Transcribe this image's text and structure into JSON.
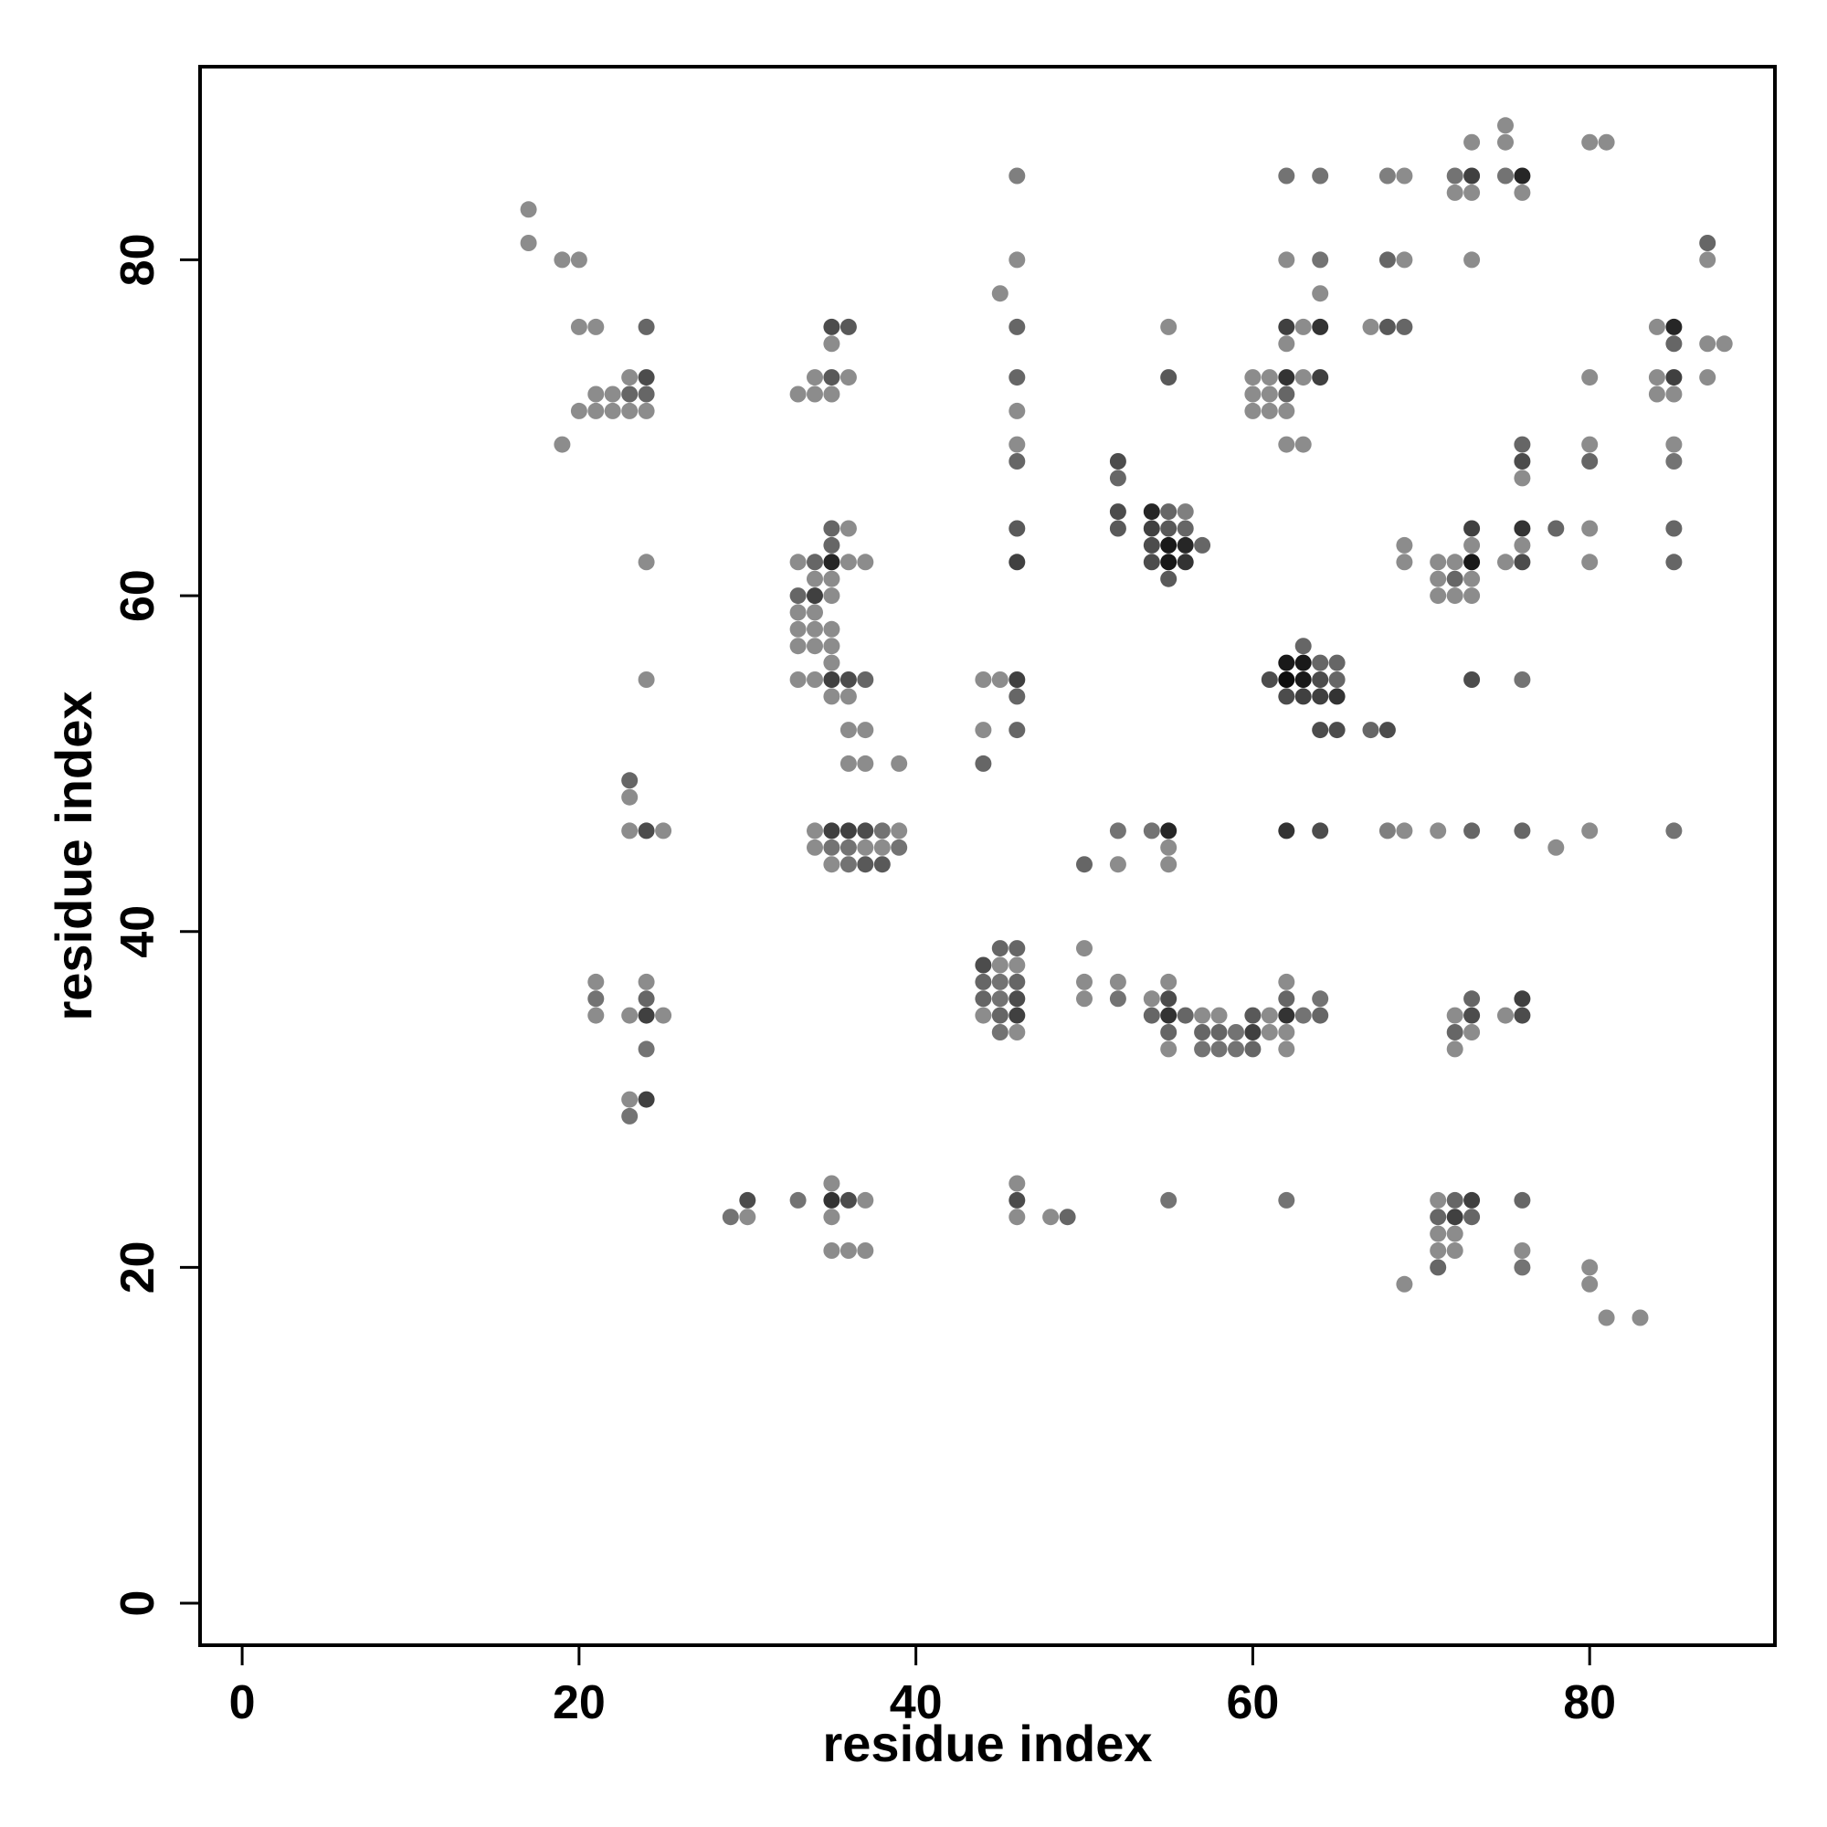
{
  "chart_data": {
    "type": "scatter",
    "title": "",
    "xlabel": "residue index",
    "ylabel": "residue index",
    "xlim": [
      -2.5,
      91
    ],
    "ylim": [
      -2.5,
      91.5
    ],
    "x_ticks": [
      0,
      20,
      40,
      60,
      80
    ],
    "y_ticks": [
      0,
      20,
      40,
      60,
      80
    ],
    "grid": false,
    "legend": "none",
    "point_color": "#000000",
    "note_shade": "darker points indicate stronger contact",
    "points": [
      [
        17,
        83,
        0.45
      ],
      [
        17,
        81,
        0.45
      ],
      [
        19,
        80,
        0.45
      ],
      [
        20,
        80,
        0.45
      ],
      [
        20,
        76,
        0.45
      ],
      [
        21,
        76,
        0.45
      ],
      [
        20,
        71,
        0.45
      ],
      [
        21,
        71,
        0.45
      ],
      [
        21,
        72,
        0.45
      ],
      [
        22,
        72,
        0.45
      ],
      [
        22,
        71,
        0.45
      ],
      [
        23,
        71,
        0.45
      ],
      [
        23,
        72,
        0.6
      ],
      [
        23,
        73,
        0.45
      ],
      [
        24,
        72,
        0.6
      ],
      [
        24,
        71,
        0.45
      ],
      [
        24,
        73,
        0.7
      ],
      [
        24,
        76,
        0.6
      ],
      [
        19,
        69,
        0.45
      ],
      [
        33,
        72,
        0.45
      ],
      [
        34,
        72,
        0.45
      ],
      [
        34,
        73,
        0.45
      ],
      [
        35,
        72,
        0.45
      ],
      [
        35,
        73,
        0.65
      ],
      [
        35,
        75,
        0.45
      ],
      [
        35,
        76,
        0.7
      ],
      [
        36,
        76,
        0.65
      ],
      [
        36,
        73,
        0.45
      ],
      [
        46,
        85,
        0.5
      ],
      [
        46,
        80,
        0.45
      ],
      [
        45,
        78,
        0.45
      ],
      [
        46,
        76,
        0.6
      ],
      [
        46,
        73,
        0.6
      ],
      [
        46,
        71,
        0.45
      ],
      [
        46,
        69,
        0.45
      ],
      [
        46,
        68,
        0.6
      ],
      [
        46,
        64,
        0.65
      ],
      [
        46,
        62,
        0.75
      ],
      [
        52,
        68,
        0.7
      ],
      [
        52,
        67,
        0.6
      ],
      [
        52,
        65,
        0.7
      ],
      [
        52,
        64,
        0.65
      ],
      [
        54,
        65,
        0.85
      ],
      [
        54,
        64,
        0.75
      ],
      [
        54,
        63,
        0.7
      ],
      [
        54,
        62,
        0.7
      ],
      [
        55,
        65,
        0.6
      ],
      [
        55,
        64,
        0.65
      ],
      [
        55,
        63,
        0.9
      ],
      [
        55,
        62,
        0.9
      ],
      [
        55,
        61,
        0.65
      ],
      [
        56,
        65,
        0.5
      ],
      [
        56,
        64,
        0.6
      ],
      [
        56,
        63,
        0.85
      ],
      [
        56,
        62,
        0.8
      ],
      [
        57,
        63,
        0.6
      ],
      [
        55,
        76,
        0.45
      ],
      [
        55,
        73,
        0.65
      ],
      [
        62,
        85,
        0.55
      ],
      [
        64,
        85,
        0.55
      ],
      [
        62,
        80,
        0.45
      ],
      [
        64,
        80,
        0.55
      ],
      [
        64,
        78,
        0.45
      ],
      [
        62,
        76,
        0.75
      ],
      [
        63,
        76,
        0.45
      ],
      [
        64,
        76,
        0.8
      ],
      [
        62,
        75,
        0.45
      ],
      [
        60,
        73,
        0.45
      ],
      [
        61,
        73,
        0.45
      ],
      [
        62,
        73,
        0.8
      ],
      [
        63,
        73,
        0.45
      ],
      [
        64,
        73,
        0.75
      ],
      [
        60,
        72,
        0.45
      ],
      [
        61,
        72,
        0.45
      ],
      [
        62,
        72,
        0.6
      ],
      [
        60,
        71,
        0.45
      ],
      [
        61,
        71,
        0.45
      ],
      [
        62,
        71,
        0.45
      ],
      [
        62,
        69,
        0.45
      ],
      [
        63,
        69,
        0.45
      ],
      [
        68,
        85,
        0.5
      ],
      [
        69,
        85,
        0.45
      ],
      [
        68,
        80,
        0.6
      ],
      [
        69,
        80,
        0.45
      ],
      [
        67,
        76,
        0.45
      ],
      [
        68,
        76,
        0.65
      ],
      [
        69,
        76,
        0.6
      ],
      [
        72,
        85,
        0.55
      ],
      [
        73,
        85,
        0.75
      ],
      [
        72,
        84,
        0.45
      ],
      [
        73,
        84,
        0.45
      ],
      [
        73,
        87,
        0.45
      ],
      [
        75,
        88,
        0.45
      ],
      [
        75,
        87,
        0.45
      ],
      [
        75,
        85,
        0.55
      ],
      [
        76,
        85,
        0.85
      ],
      [
        76,
        84,
        0.45
      ],
      [
        73,
        80,
        0.45
      ],
      [
        80,
        87,
        0.45
      ],
      [
        81,
        87,
        0.45
      ],
      [
        87,
        81,
        0.6
      ],
      [
        87,
        80,
        0.45
      ],
      [
        84,
        76,
        0.45
      ],
      [
        85,
        76,
        0.85
      ],
      [
        85,
        75,
        0.6
      ],
      [
        87,
        75,
        0.45
      ],
      [
        88,
        75,
        0.45
      ],
      [
        84,
        73,
        0.45
      ],
      [
        85,
        73,
        0.75
      ],
      [
        87,
        73,
        0.45
      ],
      [
        84,
        72,
        0.45
      ],
      [
        85,
        72,
        0.45
      ],
      [
        80,
        73,
        0.45
      ],
      [
        24,
        62,
        0.45
      ],
      [
        24,
        55,
        0.45
      ],
      [
        33,
        62,
        0.45
      ],
      [
        34,
        62,
        0.6
      ],
      [
        35,
        62,
        0.85
      ],
      [
        36,
        62,
        0.45
      ],
      [
        37,
        62,
        0.45
      ],
      [
        35,
        64,
        0.6
      ],
      [
        36,
        64,
        0.45
      ],
      [
        35,
        63,
        0.6
      ],
      [
        34,
        61,
        0.45
      ],
      [
        35,
        61,
        0.45
      ],
      [
        33,
        60,
        0.6
      ],
      [
        34,
        60,
        0.75
      ],
      [
        35,
        60,
        0.45
      ],
      [
        33,
        59,
        0.45
      ],
      [
        34,
        59,
        0.45
      ],
      [
        33,
        58,
        0.45
      ],
      [
        34,
        58,
        0.45
      ],
      [
        35,
        58,
        0.45
      ],
      [
        33,
        57,
        0.45
      ],
      [
        34,
        57,
        0.45
      ],
      [
        35,
        57,
        0.45
      ],
      [
        35,
        56,
        0.45
      ],
      [
        33,
        55,
        0.45
      ],
      [
        34,
        55,
        0.45
      ],
      [
        35,
        55,
        0.75
      ],
      [
        36,
        55,
        0.7
      ],
      [
        37,
        55,
        0.6
      ],
      [
        35,
        54,
        0.45
      ],
      [
        36,
        54,
        0.45
      ],
      [
        36,
        52,
        0.45
      ],
      [
        37,
        52,
        0.45
      ],
      [
        36,
        50,
        0.45
      ],
      [
        37,
        50,
        0.45
      ],
      [
        39,
        50,
        0.45
      ],
      [
        44,
        55,
        0.45
      ],
      [
        45,
        55,
        0.45
      ],
      [
        46,
        55,
        0.75
      ],
      [
        46,
        54,
        0.6
      ],
      [
        44,
        52,
        0.45
      ],
      [
        46,
        52,
        0.6
      ],
      [
        44,
        50,
        0.6
      ],
      [
        61,
        55,
        0.7
      ],
      [
        62,
        56,
        0.9
      ],
      [
        63,
        56,
        0.9
      ],
      [
        63,
        57,
        0.6
      ],
      [
        62,
        55,
        0.95
      ],
      [
        63,
        55,
        0.9
      ],
      [
        64,
        55,
        0.7
      ],
      [
        65,
        55,
        0.6
      ],
      [
        62,
        54,
        0.7
      ],
      [
        63,
        54,
        0.75
      ],
      [
        64,
        54,
        0.75
      ],
      [
        65,
        54,
        0.8
      ],
      [
        64,
        56,
        0.6
      ],
      [
        65,
        56,
        0.6
      ],
      [
        64,
        52,
        0.7
      ],
      [
        65,
        52,
        0.7
      ],
      [
        67,
        52,
        0.6
      ],
      [
        68,
        52,
        0.7
      ],
      [
        69,
        63,
        0.45
      ],
      [
        69,
        62,
        0.45
      ],
      [
        71,
        62,
        0.45
      ],
      [
        72,
        62,
        0.45
      ],
      [
        73,
        62,
        0.9
      ],
      [
        73,
        63,
        0.45
      ],
      [
        73,
        64,
        0.75
      ],
      [
        71,
        61,
        0.45
      ],
      [
        72,
        61,
        0.6
      ],
      [
        73,
        61,
        0.45
      ],
      [
        71,
        60,
        0.45
      ],
      [
        72,
        60,
        0.45
      ],
      [
        73,
        60,
        0.45
      ],
      [
        73,
        55,
        0.7
      ],
      [
        75,
        62,
        0.45
      ],
      [
        76,
        62,
        0.7
      ],
      [
        76,
        63,
        0.45
      ],
      [
        76,
        64,
        0.8
      ],
      [
        76,
        67,
        0.45
      ],
      [
        76,
        68,
        0.7
      ],
      [
        76,
        69,
        0.6
      ],
      [
        78,
        64,
        0.6
      ],
      [
        76,
        55,
        0.55
      ],
      [
        80,
        69,
        0.45
      ],
      [
        80,
        68,
        0.6
      ],
      [
        80,
        64,
        0.45
      ],
      [
        80,
        62,
        0.45
      ],
      [
        85,
        69,
        0.45
      ],
      [
        85,
        68,
        0.55
      ],
      [
        85,
        64,
        0.6
      ],
      [
        85,
        62,
        0.6
      ],
      [
        23,
        49,
        0.6
      ],
      [
        23,
        48,
        0.45
      ],
      [
        23,
        46,
        0.45
      ],
      [
        24,
        46,
        0.7
      ],
      [
        25,
        46,
        0.45
      ],
      [
        34,
        46,
        0.45
      ],
      [
        35,
        46,
        0.75
      ],
      [
        36,
        46,
        0.75
      ],
      [
        37,
        46,
        0.7
      ],
      [
        38,
        46,
        0.55
      ],
      [
        39,
        46,
        0.45
      ],
      [
        34,
        45,
        0.45
      ],
      [
        35,
        45,
        0.55
      ],
      [
        36,
        45,
        0.55
      ],
      [
        37,
        45,
        0.45
      ],
      [
        38,
        45,
        0.45
      ],
      [
        39,
        45,
        0.55
      ],
      [
        35,
        44,
        0.45
      ],
      [
        36,
        44,
        0.55
      ],
      [
        37,
        44,
        0.65
      ],
      [
        38,
        44,
        0.65
      ],
      [
        50,
        44,
        0.6
      ],
      [
        52,
        44,
        0.45
      ],
      [
        52,
        46,
        0.55
      ],
      [
        54,
        46,
        0.55
      ],
      [
        55,
        46,
        0.85
      ],
      [
        55,
        45,
        0.45
      ],
      [
        55,
        44,
        0.45
      ],
      [
        62,
        46,
        0.8
      ],
      [
        64,
        46,
        0.7
      ],
      [
        68,
        46,
        0.5
      ],
      [
        69,
        46,
        0.45
      ],
      [
        71,
        46,
        0.45
      ],
      [
        73,
        46,
        0.6
      ],
      [
        76,
        46,
        0.6
      ],
      [
        78,
        45,
        0.45
      ],
      [
        80,
        46,
        0.45
      ],
      [
        85,
        46,
        0.55
      ],
      [
        21,
        37,
        0.45
      ],
      [
        21,
        36,
        0.55
      ],
      [
        21,
        35,
        0.45
      ],
      [
        23,
        35,
        0.45
      ],
      [
        24,
        37,
        0.45
      ],
      [
        24,
        36,
        0.6
      ],
      [
        24,
        35,
        0.75
      ],
      [
        25,
        35,
        0.45
      ],
      [
        24,
        33,
        0.55
      ],
      [
        23,
        30,
        0.45
      ],
      [
        24,
        30,
        0.75
      ],
      [
        23,
        29,
        0.55
      ],
      [
        44,
        38,
        0.7
      ],
      [
        45,
        39,
        0.6
      ],
      [
        46,
        39,
        0.6
      ],
      [
        45,
        38,
        0.45
      ],
      [
        46,
        38,
        0.45
      ],
      [
        44,
        37,
        0.6
      ],
      [
        45,
        37,
        0.55
      ],
      [
        46,
        37,
        0.6
      ],
      [
        44,
        36,
        0.6
      ],
      [
        45,
        36,
        0.55
      ],
      [
        46,
        36,
        0.7
      ],
      [
        44,
        35,
        0.45
      ],
      [
        45,
        35,
        0.6
      ],
      [
        46,
        35,
        0.75
      ],
      [
        45,
        34,
        0.55
      ],
      [
        46,
        34,
        0.45
      ],
      [
        50,
        39,
        0.45
      ],
      [
        50,
        37,
        0.45
      ],
      [
        50,
        36,
        0.45
      ],
      [
        52,
        37,
        0.45
      ],
      [
        52,
        36,
        0.55
      ],
      [
        54,
        36,
        0.45
      ],
      [
        55,
        37,
        0.45
      ],
      [
        55,
        36,
        0.7
      ],
      [
        54,
        35,
        0.6
      ],
      [
        55,
        35,
        0.8
      ],
      [
        56,
        35,
        0.6
      ],
      [
        55,
        34,
        0.6
      ],
      [
        55,
        33,
        0.45
      ],
      [
        57,
        35,
        0.45
      ],
      [
        58,
        35,
        0.45
      ],
      [
        57,
        34,
        0.6
      ],
      [
        58,
        34,
        0.6
      ],
      [
        59,
        34,
        0.55
      ],
      [
        60,
        34,
        0.75
      ],
      [
        57,
        33,
        0.55
      ],
      [
        58,
        33,
        0.55
      ],
      [
        59,
        33,
        0.55
      ],
      [
        60,
        33,
        0.6
      ],
      [
        60,
        35,
        0.65
      ],
      [
        61,
        35,
        0.45
      ],
      [
        61,
        34,
        0.45
      ],
      [
        62,
        37,
        0.45
      ],
      [
        62,
        36,
        0.6
      ],
      [
        62,
        35,
        0.8
      ],
      [
        62,
        34,
        0.45
      ],
      [
        62,
        33,
        0.45
      ],
      [
        63,
        35,
        0.55
      ],
      [
        64,
        35,
        0.6
      ],
      [
        64,
        36,
        0.55
      ],
      [
        72,
        35,
        0.45
      ],
      [
        73,
        35,
        0.7
      ],
      [
        73,
        36,
        0.6
      ],
      [
        72,
        34,
        0.6
      ],
      [
        73,
        34,
        0.45
      ],
      [
        72,
        33,
        0.45
      ],
      [
        75,
        35,
        0.45
      ],
      [
        76,
        35,
        0.7
      ],
      [
        76,
        36,
        0.75
      ],
      [
        29,
        23,
        0.55
      ],
      [
        30,
        23,
        0.45
      ],
      [
        30,
        24,
        0.7
      ],
      [
        33,
        24,
        0.55
      ],
      [
        35,
        25,
        0.45
      ],
      [
        35,
        24,
        0.8
      ],
      [
        36,
        24,
        0.7
      ],
      [
        37,
        24,
        0.45
      ],
      [
        35,
        23,
        0.45
      ],
      [
        35,
        21,
        0.45
      ],
      [
        36,
        21,
        0.45
      ],
      [
        37,
        21,
        0.45
      ],
      [
        46,
        25,
        0.45
      ],
      [
        46,
        24,
        0.7
      ],
      [
        46,
        23,
        0.45
      ],
      [
        48,
        23,
        0.45
      ],
      [
        49,
        23,
        0.6
      ],
      [
        55,
        24,
        0.55
      ],
      [
        62,
        24,
        0.55
      ],
      [
        71,
        24,
        0.45
      ],
      [
        72,
        24,
        0.6
      ],
      [
        73,
        24,
        0.75
      ],
      [
        71,
        23,
        0.6
      ],
      [
        72,
        23,
        0.75
      ],
      [
        73,
        23,
        0.6
      ],
      [
        71,
        22,
        0.45
      ],
      [
        72,
        22,
        0.45
      ],
      [
        71,
        21,
        0.45
      ],
      [
        72,
        21,
        0.45
      ],
      [
        71,
        20,
        0.6
      ],
      [
        69,
        19,
        0.45
      ],
      [
        76,
        24,
        0.6
      ],
      [
        76,
        21,
        0.45
      ],
      [
        76,
        20,
        0.55
      ],
      [
        80,
        20,
        0.45
      ],
      [
        80,
        19,
        0.45
      ],
      [
        81,
        17,
        0.45
      ],
      [
        83,
        17,
        0.45
      ]
    ]
  }
}
